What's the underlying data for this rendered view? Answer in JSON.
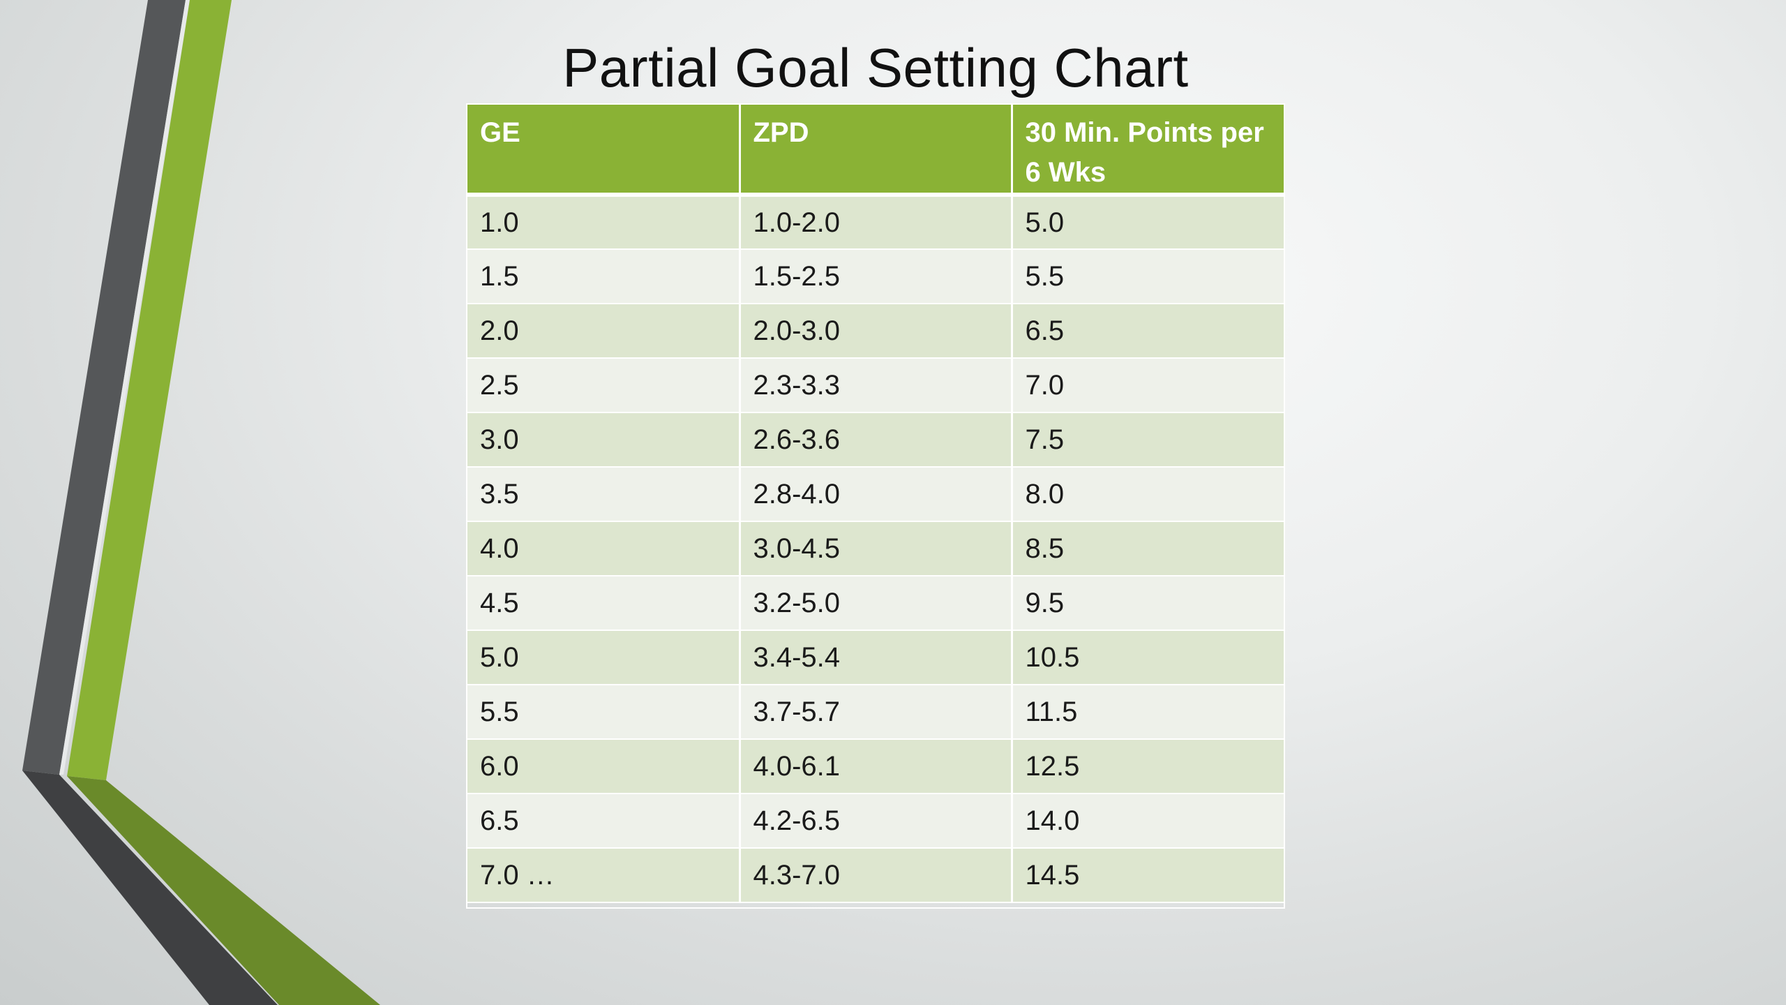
{
  "slide": {
    "title": "Partial Goal Setting Chart"
  },
  "table": {
    "headers": [
      "GE",
      "ZPD",
      "30 Min. Points per 6 Wks"
    ],
    "rows": [
      [
        "1.0",
        "1.0-2.0",
        "5.0"
      ],
      [
        "1.5",
        "1.5-2.5",
        "5.5"
      ],
      [
        "2.0",
        "2.0-3.0",
        "6.5"
      ],
      [
        "2.5",
        "2.3-3.3",
        "7.0"
      ],
      [
        "3.0",
        "2.6-3.6",
        "7.5"
      ],
      [
        "3.5",
        "2.8-4.0",
        "8.0"
      ],
      [
        "4.0",
        "3.0-4.5",
        "8.5"
      ],
      [
        "4.5",
        "3.2-5.0",
        "9.5"
      ],
      [
        "5.0",
        "3.4-5.4",
        "10.5"
      ],
      [
        "5.5",
        "3.7-5.7",
        "11.5"
      ],
      [
        "6.0",
        "4.0-6.1",
        "12.5"
      ],
      [
        "6.5",
        "4.2-6.5",
        "14.0"
      ],
      [
        "7.0 …",
        "4.3-7.0",
        "14.5"
      ]
    ]
  },
  "colors": {
    "header_green": "#8ab235",
    "row_band_dark": "#dde6cf",
    "row_band_light": "#eef1ea",
    "decor_gray": "#555759",
    "decor_green": "#8ab235",
    "decor_dark_green": "#6a8a2a"
  }
}
